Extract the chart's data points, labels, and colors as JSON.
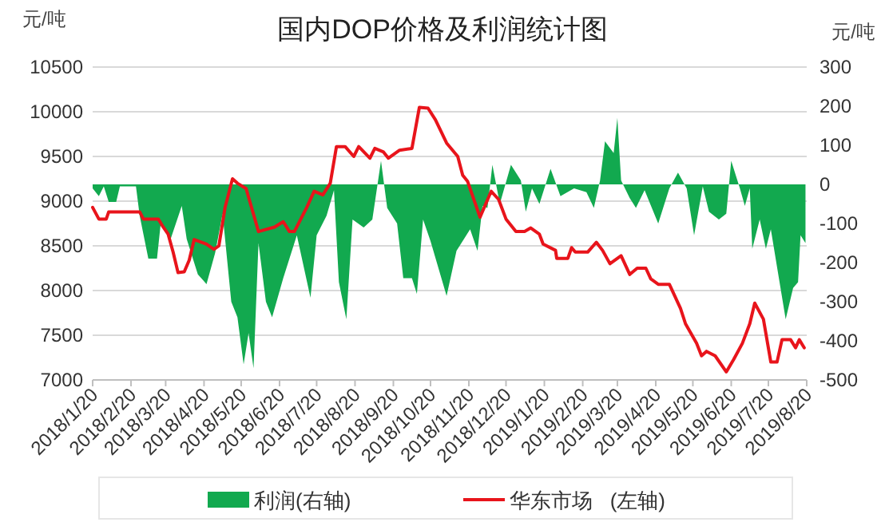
{
  "chart_data": {
    "type": "line",
    "title": "国内DOP价格及利润统计图",
    "ylabel": "元/吨",
    "y2label": "元/吨",
    "xlim": [
      "2018-01-20",
      "2019-08-20"
    ],
    "xticks": [
      {
        "value": "2018-01-20",
        "label": "2018/1/20"
      },
      {
        "value": "2018-02-20",
        "label": "2018/2/20"
      },
      {
        "value": "2018-03-20",
        "label": "2018/3/20"
      },
      {
        "value": "2018-04-20",
        "label": "2018/4/20"
      },
      {
        "value": "2018-05-20",
        "label": "2018/5/20"
      },
      {
        "value": "2018-06-20",
        "label": "2018/6/20"
      },
      {
        "value": "2018-07-20",
        "label": "2018/7/20"
      },
      {
        "value": "2018-08-20",
        "label": "2018/8/20"
      },
      {
        "value": "2018-09-20",
        "label": "2018/9/20"
      },
      {
        "value": "2018-10-20",
        "label": "2018/10/20"
      },
      {
        "value": "2018-11-20",
        "label": "2018/11/20"
      },
      {
        "value": "2018-12-20",
        "label": "2018/12/20"
      },
      {
        "value": "2019-01-20",
        "label": "2019/1/20"
      },
      {
        "value": "2019-02-20",
        "label": "2019/2/20"
      },
      {
        "value": "2019-03-20",
        "label": "2019/3/20"
      },
      {
        "value": "2019-04-20",
        "label": "2019/4/20"
      },
      {
        "value": "2019-05-20",
        "label": "2019/5/20"
      },
      {
        "value": "2019-06-20",
        "label": "2019/6/20"
      },
      {
        "value": "2019-07-20",
        "label": "2019/7/20"
      },
      {
        "value": "2019-08-20",
        "label": "2019/8/20"
      }
    ],
    "ylim": [
      7000,
      10500
    ],
    "yticks": [
      7000,
      7500,
      8000,
      8500,
      9000,
      9500,
      10000,
      10500
    ],
    "y2lim": [
      -500,
      300
    ],
    "y2ticks": [
      -500,
      -400,
      -300,
      -200,
      -100,
      0,
      100,
      200,
      300
    ],
    "grid": "y",
    "legend": "bottom",
    "series": [
      {
        "name": "利润(右轴)",
        "type": "area",
        "axis": "y2",
        "color": "#12a94f",
        "x": [
          "2018-01-20",
          "2018-01-25",
          "2018-01-29",
          "2018-02-02",
          "2018-02-08",
          "2018-02-11",
          "2018-02-24",
          "2018-02-27",
          "2018-03-06",
          "2018-03-13",
          "2018-03-16",
          "2018-03-24",
          "2018-04-02",
          "2018-04-06",
          "2018-04-15",
          "2018-04-22",
          "2018-04-29",
          "2018-05-05",
          "2018-05-12",
          "2018-05-17",
          "2018-05-22",
          "2018-05-26",
          "2018-05-30",
          "2018-06-03",
          "2018-06-09",
          "2018-06-14",
          "2018-06-23",
          "2018-07-04",
          "2018-07-15",
          "2018-07-20",
          "2018-07-28",
          "2018-08-03",
          "2018-08-07",
          "2018-08-13",
          "2018-08-18",
          "2018-08-27",
          "2018-09-03",
          "2018-09-10",
          "2018-09-15",
          "2018-09-23",
          "2018-09-28",
          "2018-10-05",
          "2018-10-09",
          "2018-10-14",
          "2018-10-20",
          "2018-11-02",
          "2018-11-10",
          "2018-11-21",
          "2018-11-27",
          "2018-12-01",
          "2018-12-05",
          "2018-12-09",
          "2018-12-15",
          "2018-12-24",
          "2019-01-01",
          "2019-01-05",
          "2019-01-10",
          "2019-01-16",
          "2019-01-25",
          "2019-02-02",
          "2019-02-13",
          "2019-02-23",
          "2019-03-01",
          "2019-03-06",
          "2019-03-10",
          "2019-03-17",
          "2019-03-20",
          "2019-03-23",
          "2019-03-30",
          "2019-04-04",
          "2019-04-11",
          "2019-04-22",
          "2019-05-01",
          "2019-05-08",
          "2019-05-15",
          "2019-05-21",
          "2019-05-28",
          "2019-06-02",
          "2019-06-10",
          "2019-06-16",
          "2019-06-20",
          "2019-06-27",
          "2019-07-01",
          "2019-07-05",
          "2019-07-07",
          "2019-07-13",
          "2019-07-18",
          "2019-07-22",
          "2019-07-28",
          "2019-08-03",
          "2019-08-09",
          "2019-08-13",
          "2019-08-15",
          "2019-08-19"
        ],
        "values": [
          -10,
          -30,
          -5,
          -45,
          -45,
          -5,
          -5,
          -80,
          -190,
          -190,
          -100,
          -140,
          -55,
          -140,
          -230,
          -255,
          -175,
          -75,
          -300,
          -340,
          -460,
          -380,
          -470,
          -150,
          -300,
          -340,
          -240,
          -130,
          -290,
          -130,
          -80,
          -15,
          -250,
          -345,
          -90,
          -110,
          -90,
          60,
          -60,
          -100,
          -240,
          -240,
          -280,
          -90,
          -145,
          -285,
          -170,
          -115,
          -170,
          -55,
          -60,
          50,
          -50,
          50,
          10,
          -70,
          -10,
          -50,
          40,
          -30,
          -10,
          -20,
          -60,
          10,
          110,
          80,
          170,
          10,
          -35,
          -60,
          -15,
          -100,
          -10,
          30,
          -10,
          -130,
          -5,
          -70,
          -90,
          -75,
          60,
          -10,
          -55,
          -10,
          -165,
          -90,
          -165,
          -115,
          -230,
          -345,
          -265,
          -250,
          -130,
          -150
        ]
      },
      {
        "name": "华东市场   (左轴)",
        "axis": "y",
        "color": "#e8141b",
        "x": [
          "2018-01-20",
          "2018-01-25",
          "2018-01-31",
          "2018-02-02",
          "2018-02-27",
          "2018-03-02",
          "2018-03-14",
          "2018-03-18",
          "2018-03-22",
          "2018-03-26",
          "2018-03-30",
          "2018-04-04",
          "2018-04-08",
          "2018-04-12",
          "2018-04-22",
          "2018-04-28",
          "2018-05-02",
          "2018-05-07",
          "2018-05-13",
          "2018-05-17",
          "2018-05-24",
          "2018-06-03",
          "2018-06-08",
          "2018-06-16",
          "2018-06-23",
          "2018-06-28",
          "2018-07-02",
          "2018-07-12",
          "2018-07-18",
          "2018-07-25",
          "2018-07-31",
          "2018-08-05",
          "2018-08-12",
          "2018-08-19",
          "2018-08-23",
          "2018-09-01",
          "2018-09-05",
          "2018-09-12",
          "2018-09-16",
          "2018-09-25",
          "2018-10-05",
          "2018-10-11",
          "2018-10-18",
          "2018-10-24",
          "2018-11-02",
          "2018-11-11",
          "2018-11-15",
          "2018-11-19",
          "2018-11-29",
          "2018-12-08",
          "2018-12-14",
          "2018-12-20",
          "2018-12-28",
          "2019-01-04",
          "2019-01-09",
          "2019-01-16",
          "2019-01-19",
          "2019-01-29",
          "2019-01-30",
          "2019-02-08",
          "2019-02-11",
          "2019-02-14",
          "2019-02-24",
          "2019-03-03",
          "2019-03-08",
          "2019-03-14",
          "2019-03-23",
          "2019-03-30",
          "2019-04-05",
          "2019-04-12",
          "2019-04-16",
          "2019-04-22",
          "2019-05-01",
          "2019-05-10",
          "2019-05-14",
          "2019-05-23",
          "2019-05-27",
          "2019-05-31",
          "2019-06-07",
          "2019-06-16",
          "2019-06-22",
          "2019-06-29",
          "2019-07-05",
          "2019-07-09",
          "2019-07-16",
          "2019-07-22",
          "2019-07-27",
          "2019-07-31",
          "2019-08-07",
          "2019-08-11",
          "2019-08-14",
          "2019-08-18"
        ],
        "values": [
          8930,
          8800,
          8800,
          8880,
          8880,
          8800,
          8800,
          8710,
          8630,
          8430,
          8200,
          8210,
          8340,
          8570,
          8520,
          8460,
          8500,
          8930,
          9250,
          9200,
          9140,
          8660,
          8680,
          8710,
          8770,
          8660,
          8660,
          8930,
          9110,
          9070,
          9200,
          9610,
          9610,
          9500,
          9610,
          9480,
          9590,
          9550,
          9480,
          9570,
          9590,
          10050,
          10040,
          9910,
          9650,
          9500,
          9290,
          9220,
          8820,
          9110,
          9020,
          8800,
          8660,
          8660,
          8700,
          8630,
          8520,
          8450,
          8360,
          8360,
          8480,
          8430,
          8430,
          8540,
          8450,
          8300,
          8390,
          8180,
          8250,
          8250,
          8130,
          8070,
          8070,
          7800,
          7630,
          7410,
          7270,
          7320,
          7270,
          7090,
          7230,
          7410,
          7630,
          7860,
          7680,
          7200,
          7200,
          7450,
          7450,
          7360,
          7450,
          7360
        ]
      }
    ]
  }
}
